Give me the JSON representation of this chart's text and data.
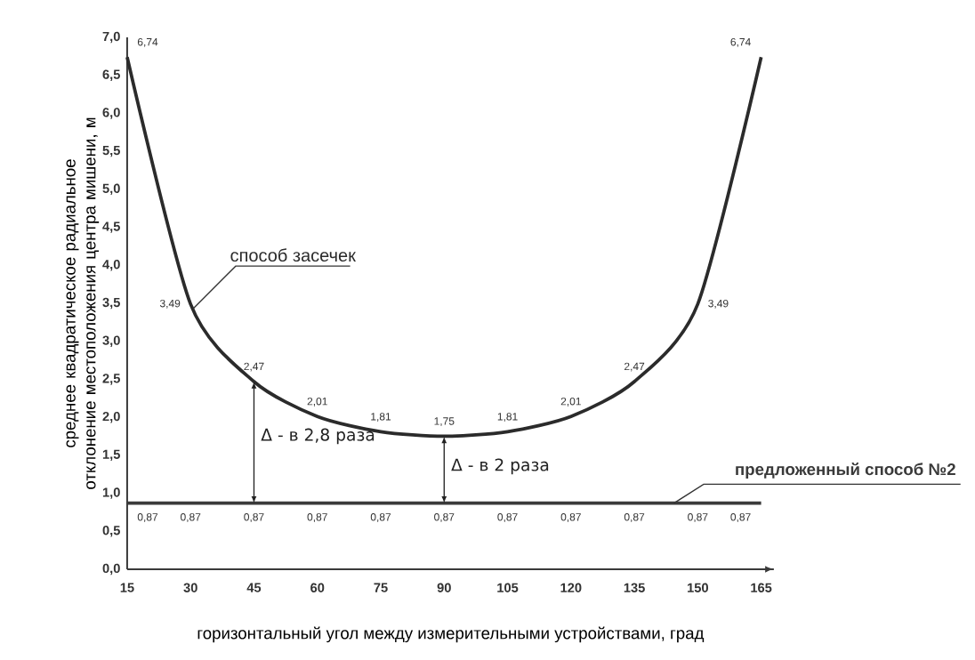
{
  "chart_data": {
    "type": "line",
    "xlabel": "горизонтальный угол между измерительными устройствами, град",
    "ylabel": "среднее квадратическое радиальное отклонение местоположения центра мишени, м",
    "x": [
      15,
      30,
      45,
      60,
      75,
      90,
      105,
      120,
      135,
      150,
      165
    ],
    "series": [
      {
        "name": "способ засечек",
        "color": "#2b2b2b",
        "values": [
          6.74,
          3.49,
          2.47,
          2.01,
          1.81,
          1.75,
          1.81,
          2.01,
          2.47,
          3.49,
          6.74
        ],
        "value_labels": [
          "6,74",
          "3,49",
          "2,47",
          "2,01",
          "1,81",
          "1,75",
          "1,81",
          "2,01",
          "2,47",
          "3,49",
          "6,74"
        ]
      },
      {
        "name": "предложенный способ №2",
        "color": "#3a3a3a",
        "values": [
          0.87,
          0.87,
          0.87,
          0.87,
          0.87,
          0.87,
          0.87,
          0.87,
          0.87,
          0.87,
          0.87
        ],
        "value_labels": [
          "0,87",
          "0,87",
          "0,87",
          "0,87",
          "0,87",
          "0,87",
          "0,87",
          "0,87",
          "0,87",
          "0,87",
          "0,87"
        ]
      }
    ],
    "xlim": [
      15,
      168
    ],
    "ylim": [
      0,
      7
    ],
    "xticks": [
      15,
      30,
      45,
      60,
      75,
      90,
      105,
      120,
      135,
      150,
      165
    ],
    "yticks": [
      {
        "value": 0,
        "label": "0,0"
      },
      {
        "value": 0.5,
        "label": "0,5"
      },
      {
        "value": 1,
        "label": "1,0"
      },
      {
        "value": 1.5,
        "label": "1,5"
      },
      {
        "value": 2,
        "label": "2,0"
      },
      {
        "value": 2.5,
        "label": "2,5"
      },
      {
        "value": 3,
        "label": "3,0"
      },
      {
        "value": 3.5,
        "label": "3,5"
      },
      {
        "value": 4,
        "label": "4,0"
      },
      {
        "value": 4.5,
        "label": "4,5"
      },
      {
        "value": 5,
        "label": "5,0"
      },
      {
        "value": 5.5,
        "label": "5,5"
      },
      {
        "value": 6,
        "label": "6,0"
      },
      {
        "value": 6.5,
        "label": "6,5"
      },
      {
        "value": 7,
        "label": "7,0"
      }
    ],
    "annotations": [
      {
        "text": "Δ - в 2,8 раза",
        "x": 45,
        "y": 2.47
      },
      {
        "text": "Δ - в 2 раза",
        "x": 90,
        "y": 1.75
      }
    ],
    "grid": false,
    "line_style": "solid"
  }
}
